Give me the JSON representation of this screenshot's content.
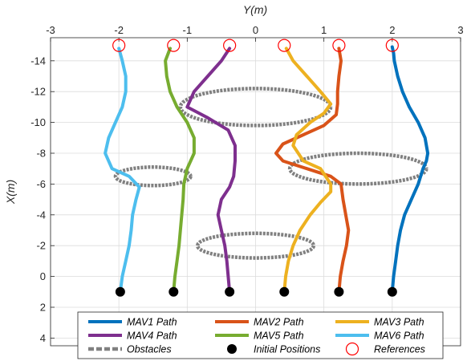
{
  "chart_data": {
    "type": "line",
    "xlabel": "Y(m)",
    "ylabel": "X(m)",
    "xlim": [
      -3,
      3
    ],
    "ylim": [
      -15.5,
      4.5
    ],
    "y_axis_reversed": true,
    "x_axis_location": "top",
    "x_ticks": [
      "-3",
      "-2",
      "-1",
      "0",
      "1",
      "2",
      "3"
    ],
    "y_ticks": [
      "-14",
      "-12",
      "-10",
      "-8",
      "-6",
      "-4",
      "-2",
      "0",
      "2",
      "4"
    ],
    "grid": true,
    "legend_placement": "bottom",
    "series": [
      {
        "name": "MAV1 Path",
        "color": "#0072BD",
        "points": [
          [
            2.0,
            1.0
          ],
          [
            2.02,
            0.0
          ],
          [
            2.05,
            -1.0
          ],
          [
            2.08,
            -2.0
          ],
          [
            2.12,
            -3.0
          ],
          [
            2.18,
            -4.0
          ],
          [
            2.28,
            -5.0
          ],
          [
            2.38,
            -6.0
          ],
          [
            2.45,
            -7.0
          ],
          [
            2.5,
            -7.5
          ],
          [
            2.52,
            -8.0
          ],
          [
            2.48,
            -9.0
          ],
          [
            2.38,
            -10.0
          ],
          [
            2.25,
            -11.0
          ],
          [
            2.15,
            -12.0
          ],
          [
            2.08,
            -13.0
          ],
          [
            2.03,
            -14.0
          ],
          [
            2.02,
            -14.5
          ],
          [
            2.0,
            -14.9
          ]
        ]
      },
      {
        "name": "MAV2 Path",
        "color": "#D95319",
        "points": [
          [
            1.22,
            1.0
          ],
          [
            1.24,
            0.0
          ],
          [
            1.28,
            -1.0
          ],
          [
            1.33,
            -2.0
          ],
          [
            1.36,
            -3.0
          ],
          [
            1.32,
            -4.0
          ],
          [
            1.28,
            -5.0
          ],
          [
            1.25,
            -6.0
          ],
          [
            1.1,
            -6.5
          ],
          [
            0.75,
            -7.0
          ],
          [
            0.4,
            -7.5
          ],
          [
            0.3,
            -8.0
          ],
          [
            0.4,
            -8.6
          ],
          [
            0.7,
            -9.2
          ],
          [
            1.0,
            -9.8
          ],
          [
            1.18,
            -10.5
          ],
          [
            1.2,
            -11.2
          ],
          [
            1.2,
            -12.0
          ],
          [
            1.22,
            -13.0
          ],
          [
            1.25,
            -14.0
          ],
          [
            1.22,
            -14.8
          ]
        ]
      },
      {
        "name": "MAV3 Path",
        "color": "#EDB120",
        "points": [
          [
            0.42,
            1.0
          ],
          [
            0.44,
            0.0
          ],
          [
            0.48,
            -1.0
          ],
          [
            0.55,
            -2.0
          ],
          [
            0.65,
            -3.0
          ],
          [
            0.8,
            -4.0
          ],
          [
            0.95,
            -4.8
          ],
          [
            1.1,
            -5.5
          ],
          [
            1.1,
            -6.0
          ],
          [
            0.95,
            -7.0
          ],
          [
            0.7,
            -7.5
          ],
          [
            0.55,
            -8.5
          ],
          [
            0.6,
            -9.2
          ],
          [
            0.8,
            -10.0
          ],
          [
            1.0,
            -10.6
          ],
          [
            1.1,
            -11.2
          ],
          [
            0.95,
            -12.0
          ],
          [
            0.75,
            -13.0
          ],
          [
            0.55,
            -14.0
          ],
          [
            0.45,
            -14.8
          ]
        ]
      },
      {
        "name": "MAV4 Path",
        "color": "#7E2F8E",
        "points": [
          [
            -0.38,
            1.0
          ],
          [
            -0.4,
            0.0
          ],
          [
            -0.42,
            -1.0
          ],
          [
            -0.45,
            -2.0
          ],
          [
            -0.5,
            -3.0
          ],
          [
            -0.55,
            -4.0
          ],
          [
            -0.5,
            -5.0
          ],
          [
            -0.38,
            -5.8
          ],
          [
            -0.32,
            -6.5
          ],
          [
            -0.3,
            -7.5
          ],
          [
            -0.3,
            -8.5
          ],
          [
            -0.4,
            -9.5
          ],
          [
            -0.7,
            -10.3
          ],
          [
            -1.0,
            -11.0
          ],
          [
            -0.9,
            -12.0
          ],
          [
            -0.7,
            -13.0
          ],
          [
            -0.5,
            -14.0
          ],
          [
            -0.38,
            -14.8
          ]
        ]
      },
      {
        "name": "MAV5 Path",
        "color": "#77AC30",
        "points": [
          [
            -1.2,
            1.0
          ],
          [
            -1.18,
            0.0
          ],
          [
            -1.15,
            -1.0
          ],
          [
            -1.12,
            -2.0
          ],
          [
            -1.1,
            -3.0
          ],
          [
            -1.08,
            -4.0
          ],
          [
            -1.06,
            -5.0
          ],
          [
            -1.05,
            -6.0
          ],
          [
            -1.0,
            -7.0
          ],
          [
            -0.9,
            -8.0
          ],
          [
            -0.9,
            -9.0
          ],
          [
            -1.0,
            -10.0
          ],
          [
            -1.15,
            -11.0
          ],
          [
            -1.25,
            -12.0
          ],
          [
            -1.3,
            -13.0
          ],
          [
            -1.32,
            -14.0
          ],
          [
            -1.25,
            -14.8
          ]
        ]
      },
      {
        "name": "MAV6 Path",
        "color": "#4DBEEE",
        "points": [
          [
            -1.98,
            1.0
          ],
          [
            -1.95,
            0.0
          ],
          [
            -1.9,
            -1.0
          ],
          [
            -1.85,
            -2.0
          ],
          [
            -1.82,
            -3.0
          ],
          [
            -1.8,
            -4.0
          ],
          [
            -1.75,
            -5.0
          ],
          [
            -1.7,
            -5.8
          ],
          [
            -1.85,
            -6.5
          ],
          [
            -2.1,
            -7.0
          ],
          [
            -2.2,
            -8.0
          ],
          [
            -2.15,
            -9.0
          ],
          [
            -2.05,
            -10.0
          ],
          [
            -1.95,
            -11.0
          ],
          [
            -1.9,
            -12.0
          ],
          [
            -1.9,
            -13.0
          ],
          [
            -1.95,
            -14.0
          ],
          [
            -2.0,
            -14.8
          ]
        ]
      }
    ],
    "obstacles": {
      "name": "Obstacles",
      "color": "#808080",
      "ellipses": [
        {
          "cy": 0.0,
          "cx": -11.0,
          "ry": 1.1,
          "rx": 1.2
        },
        {
          "cy": 1.5,
          "cx": -7.0,
          "ry": 1.0,
          "rx": 1.0
        },
        {
          "cy": -1.5,
          "cx": -6.5,
          "ry": 0.55,
          "rx": 0.6
        },
        {
          "cy": 0.0,
          "cx": -2.0,
          "ry": 0.85,
          "rx": 0.8
        }
      ]
    },
    "initial_positions": {
      "name": "Initial Positions",
      "color": "#000000",
      "points": [
        [
          2.0,
          1.0
        ],
        [
          1.22,
          1.0
        ],
        [
          0.42,
          1.0
        ],
        [
          -0.38,
          1.0
        ],
        [
          -1.2,
          1.0
        ],
        [
          -1.98,
          1.0
        ]
      ]
    },
    "references": {
      "name": "References",
      "color": "#FF0000",
      "points": [
        [
          2.0,
          -15.0
        ],
        [
          1.22,
          -15.0
        ],
        [
          0.42,
          -15.0
        ],
        [
          -0.38,
          -15.0
        ],
        [
          -1.2,
          -15.0
        ],
        [
          -2.0,
          -15.0
        ]
      ]
    }
  }
}
